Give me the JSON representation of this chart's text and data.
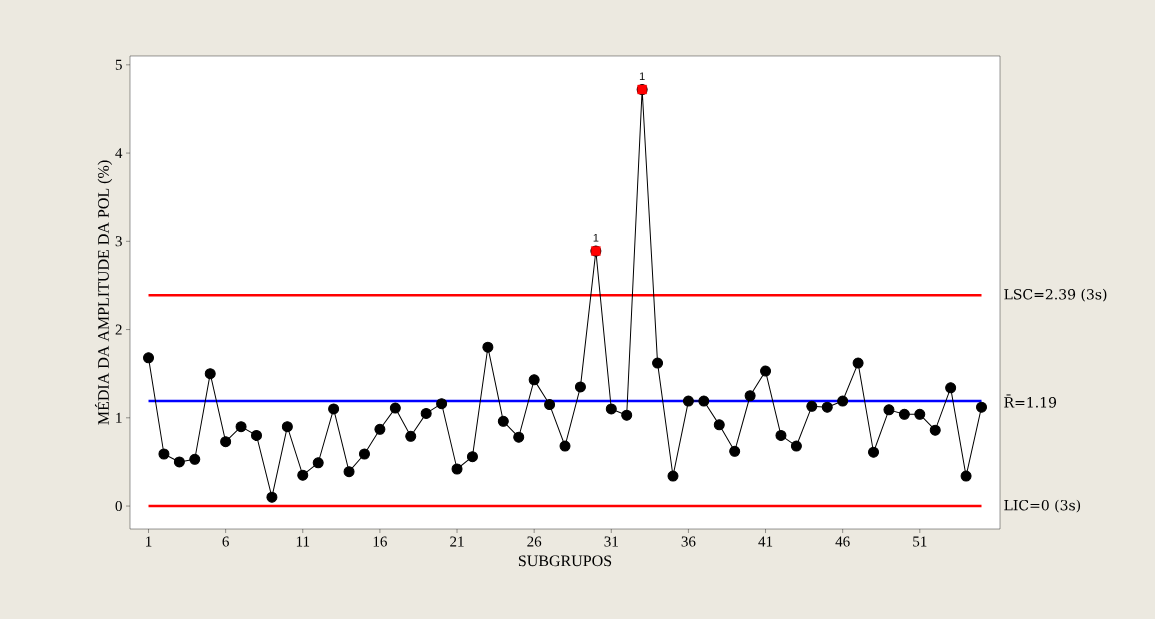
{
  "chart_data": {
    "type": "line",
    "xlabel": "SUBGRUPOS",
    "ylabel": "MÉDIA DA AMPLITUDE DA POL (%)",
    "x": [
      1,
      2,
      3,
      4,
      5,
      6,
      7,
      8,
      9,
      10,
      11,
      12,
      13,
      14,
      15,
      16,
      17,
      18,
      19,
      20,
      21,
      22,
      23,
      24,
      25,
      26,
      27,
      28,
      29,
      30,
      31,
      32,
      33,
      34,
      35,
      36,
      37,
      38,
      39,
      40,
      41,
      42,
      43,
      44,
      45,
      46,
      47,
      48,
      49,
      50,
      51,
      52,
      53,
      54,
      55
    ],
    "marker": "circle",
    "line_style": "solid",
    "grid": false,
    "series": [
      {
        "color": "#000000",
        "values": [
          1.68,
          0.59,
          0.5,
          0.53,
          1.5,
          0.73,
          0.9,
          0.8,
          0.1,
          0.9,
          0.35,
          0.49,
          1.1,
          0.39,
          0.59,
          0.87,
          1.11,
          0.79,
          1.05,
          1.16,
          0.42,
          0.56,
          1.8,
          0.96,
          0.78,
          1.43,
          1.15,
          0.68,
          1.35,
          2.89,
          1.1,
          1.03,
          4.72,
          1.62,
          0.34,
          1.19,
          1.19,
          0.92,
          0.62,
          1.25,
          1.53,
          0.8,
          0.68,
          1.13,
          1.12,
          1.19,
          1.62,
          0.61,
          1.09,
          1.04,
          1.04,
          0.86,
          1.34,
          0.34,
          1.12
        ]
      },
      {
        "type": "scatter",
        "marker": "square",
        "color": "#ff0000",
        "x": [
          30,
          33
        ],
        "values": [
          2.89,
          4.72
        ]
      }
    ],
    "xlim": [
      -0.2,
      56.2
    ],
    "ylim": [
      -0.26,
      5.1
    ],
    "xticks": [
      1,
      6,
      11,
      16,
      21,
      26,
      31,
      36,
      41,
      46,
      51
    ],
    "yticks": [
      0,
      1,
      2,
      3,
      4,
      5
    ],
    "ref_lines": [
      {
        "axis": "y",
        "value": 2.39,
        "label": "LSC=2.39 (3s)",
        "color": "#ff0000"
      },
      {
        "axis": "y",
        "value": 1.19,
        "label": "R̄=1.19",
        "color": "#0000ff"
      },
      {
        "axis": "y",
        "value": 0,
        "label": "LIC=0 (3s)",
        "color": "#ff0000"
      }
    ],
    "annotations": [
      {
        "text": "1",
        "x": 30,
        "y": 2.89
      },
      {
        "text": "1",
        "x": 33,
        "y": 4.72
      }
    ]
  }
}
